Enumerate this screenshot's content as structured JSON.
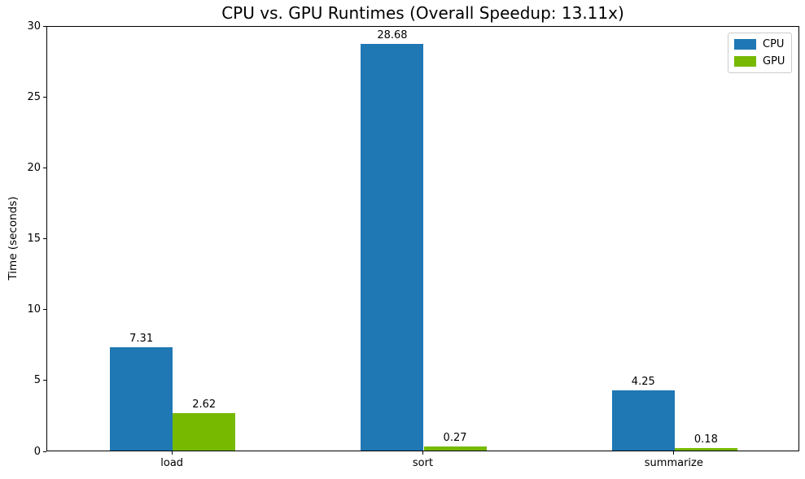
{
  "chart_data": {
    "type": "bar",
    "title": "CPU vs. GPU Runtimes (Overall Speedup: 13.11x)",
    "overall_speedup_text": "13.11x",
    "categories": [
      "load",
      "sort",
      "summarize"
    ],
    "series": [
      {
        "name": "CPU",
        "color": "#1f77b4",
        "values": [
          7.31,
          28.68,
          4.25
        ],
        "labels": [
          "7.31",
          "28.68",
          "4.25"
        ]
      },
      {
        "name": "GPU",
        "color": "#76b900",
        "values": [
          2.62,
          0.27,
          0.18
        ],
        "labels": [
          "2.62",
          "0.27",
          "0.18"
        ]
      }
    ],
    "xlabel": "",
    "ylabel": "Time (seconds)",
    "ylim": [
      0,
      30
    ],
    "yticks": [
      0,
      5,
      10,
      15,
      20,
      25,
      30
    ],
    "grid": false,
    "legend_position": "upper right",
    "bar_value_labels_shown": true
  }
}
